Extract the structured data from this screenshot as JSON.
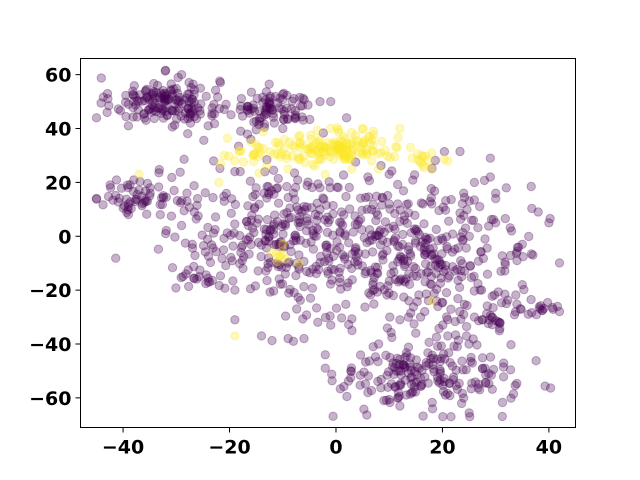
{
  "chart_data": {
    "type": "scatter",
    "title": "",
    "xlabel": "",
    "ylabel": "",
    "xlim": [
      -48,
      45
    ],
    "ylim": [
      -71,
      66
    ],
    "xticks": [
      -40,
      -20,
      0,
      20,
      40
    ],
    "yticks": [
      -60,
      -40,
      -20,
      0,
      20,
      40,
      60
    ],
    "xtick_labels": [
      "−40",
      "−20",
      "0",
      "20",
      "40"
    ],
    "ytick_labels": [
      "−60",
      "−40",
      "−20",
      "0",
      "20",
      "40",
      "60"
    ],
    "grid": false,
    "legend": "none",
    "colors": {
      "class_0": "#440154",
      "class_1": "#fde725"
    },
    "marker_alpha": 0.3,
    "series": [
      {
        "class": 0,
        "clusters": [
          {
            "cx": -32,
            "cy": 50,
            "sx": 5.0,
            "sy": 4.5,
            "n": 160
          },
          {
            "cx": -12,
            "cy": 47,
            "sx": 4.0,
            "sy": 3.5,
            "n": 90
          },
          {
            "cx": -36,
            "cy": 15,
            "sx": 4.5,
            "sy": 3.5,
            "n": 55
          },
          {
            "cx": -13,
            "cy": 2,
            "sx": 11,
            "sy": 12,
            "n": 200
          },
          {
            "cx": 5,
            "cy": -4,
            "sx": 11,
            "sy": 14,
            "n": 260
          },
          {
            "cx": 20,
            "cy": -8,
            "sx": 9,
            "sy": 14,
            "n": 180
          },
          {
            "cx": 17,
            "cy": -52,
            "sx": 8,
            "sy": 6.5,
            "n": 190
          },
          {
            "cx": 36,
            "cy": -26,
            "sx": 3.0,
            "sy": 2.2,
            "n": 25
          },
          {
            "cx": 29,
            "cy": -31,
            "sx": 1.8,
            "sy": 1.5,
            "n": 15
          },
          {
            "cx": -26,
            "cy": -15,
            "sx": 2.0,
            "sy": 1.5,
            "n": 12
          }
        ],
        "points": [
          [
            -43,
            46
          ],
          [
            -39,
            49
          ],
          [
            -29,
            60
          ],
          [
            -3,
            50
          ],
          [
            -1,
            50
          ],
          [
            2,
            44
          ],
          [
            -19,
            24
          ],
          [
            -18,
            24
          ],
          [
            -28,
            13
          ],
          [
            -23,
            28
          ],
          [
            -28,
            16
          ],
          [
            29,
            29
          ],
          [
            -14,
            -37
          ],
          [
            -9,
            -38
          ],
          [
            -8,
            -39
          ],
          [
            -2,
            -44
          ],
          [
            -2,
            -49
          ],
          [
            7,
            -41
          ],
          [
            8,
            -40
          ],
          [
            37,
            -7
          ],
          [
            38,
            9
          ],
          [
            40,
            5
          ],
          [
            35,
            -3
          ],
          [
            30,
            5
          ],
          [
            32,
            -25
          ],
          [
            3,
            -35
          ],
          [
            26,
            -30
          ],
          [
            24,
            -29
          ],
          [
            -6,
            -38
          ],
          [
            -1,
            -33
          ],
          [
            -24,
            -17
          ],
          [
            -19,
            -20
          ],
          [
            -19,
            -31
          ],
          [
            -26,
            14
          ],
          [
            -21,
            13
          ],
          [
            -15,
            18
          ],
          [
            -11,
            18
          ],
          [
            -8,
            16
          ],
          [
            10,
            12
          ],
          [
            18,
            12
          ],
          [
            24,
            16
          ],
          [
            29,
            22
          ],
          [
            32,
            18
          ],
          [
            6,
            22
          ],
          [
            10,
            23
          ],
          [
            -3,
            18
          ],
          [
            -6,
            11
          ],
          [
            -33,
            8
          ],
          [
            -39,
            12
          ],
          [
            -29,
            4
          ],
          [
            -32,
            1
          ],
          [
            -27,
            -3
          ],
          [
            26,
            20
          ],
          [
            30,
            16
          ],
          [
            27,
            11
          ],
          [
            33,
            2
          ],
          [
            28,
            -1
          ],
          [
            34,
            -9
          ],
          [
            31,
            -13
          ],
          [
            35,
            -18
          ],
          [
            12,
            -31
          ],
          [
            15,
            -36
          ],
          [
            21,
            -37
          ],
          [
            25,
            -40
          ],
          [
            6,
            -58
          ],
          [
            9,
            -61
          ],
          [
            12,
            -63
          ],
          [
            24,
            -60
          ],
          [
            27,
            -57
          ],
          [
            28,
            -49
          ],
          [
            -10,
            40
          ],
          [
            -16,
            36
          ],
          [
            -24,
            41
          ],
          [
            -39,
            41
          ],
          [
            -45,
            44
          ]
        ]
      },
      {
        "class": 1,
        "clusters": [
          {
            "cx": 1,
            "cy": 33,
            "sx": 4.0,
            "sy": 2.8,
            "n": 110
          },
          {
            "cx": -12,
            "cy": 31,
            "sx": 5.0,
            "sy": 2.5,
            "n": 45
          },
          {
            "cx": 17,
            "cy": 28,
            "sx": 2.0,
            "sy": 2.0,
            "n": 12
          },
          {
            "cx": 10,
            "cy": 30,
            "sx": 2.5,
            "sy": 2.0,
            "n": 10
          },
          {
            "cx": -11,
            "cy": -8,
            "sx": 1.5,
            "sy": 1.2,
            "n": 6
          }
        ],
        "points": [
          [
            12,
            40
          ],
          [
            -9,
            25
          ],
          [
            -13,
            26
          ],
          [
            -4,
            26
          ],
          [
            -21,
            30
          ],
          [
            -37,
            23
          ],
          [
            -22,
            20
          ],
          [
            -19,
            -37
          ],
          [
            -12,
            -6
          ],
          [
            -10,
            -3
          ],
          [
            -7,
            -10
          ],
          [
            18,
            -24
          ],
          [
            21,
            28
          ],
          [
            18,
            31
          ],
          [
            14,
            33
          ],
          [
            5,
            40
          ],
          [
            7,
            39
          ],
          [
            -1,
            40
          ],
          [
            -7,
            37
          ],
          [
            -15,
            34
          ],
          [
            8,
            25
          ],
          [
            3,
            25
          ],
          [
            -2,
            23
          ]
        ]
      }
    ]
  }
}
